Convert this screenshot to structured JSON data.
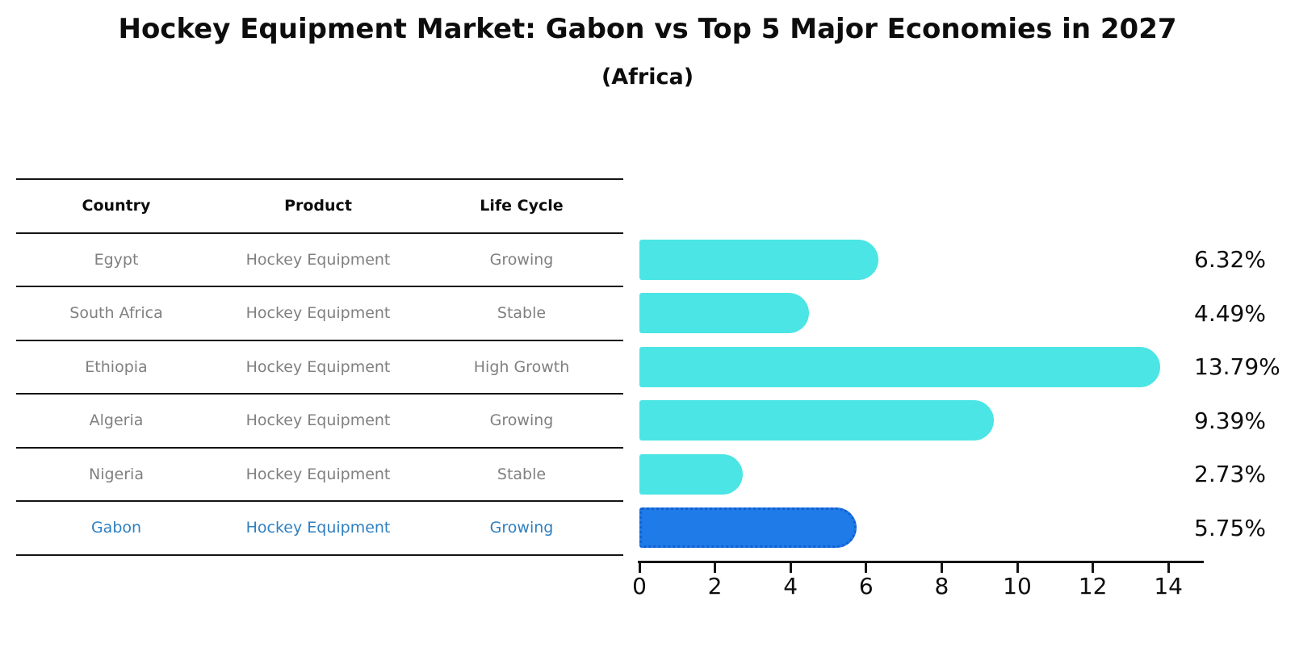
{
  "title": "Hockey Equipment Market: Gabon vs Top 5 Major Economies in 2027",
  "subtitle": "(Africa)",
  "table": {
    "headers": [
      "Country",
      "Product",
      "Life Cycle"
    ],
    "rows": [
      {
        "country": "Egypt",
        "product": "Hockey Equipment",
        "life_cycle": "Growing",
        "highlight": false
      },
      {
        "country": "South Africa",
        "product": "Hockey Equipment",
        "life_cycle": "Stable",
        "highlight": false
      },
      {
        "country": "Ethiopia",
        "product": "Hockey Equipment",
        "life_cycle": "High Growth",
        "highlight": false
      },
      {
        "country": "Algeria",
        "product": "Hockey Equipment",
        "life_cycle": "Growing",
        "highlight": false
      },
      {
        "country": "Nigeria",
        "product": "Hockey Equipment",
        "life_cycle": "Stable",
        "highlight": false
      },
      {
        "country": "Gabon",
        "product": "Hockey Equipment",
        "life_cycle": "Growing",
        "highlight": true
      }
    ]
  },
  "chart_data": {
    "type": "bar",
    "orientation": "horizontal",
    "title": "Hockey Equipment Market: Gabon vs Top 5 Major Economies in 2027",
    "subtitle": "(Africa)",
    "categories": [
      "Egypt",
      "South Africa",
      "Ethiopia",
      "Algeria",
      "Nigeria",
      "Gabon"
    ],
    "values": [
      6.32,
      4.49,
      13.79,
      9.39,
      2.73,
      5.75
    ],
    "value_labels": [
      "6.32%",
      "4.49%",
      "13.79%",
      "9.39%",
      "2.73%",
      "5.75%"
    ],
    "highlighted_category": "Gabon",
    "x_ticks": [
      0,
      2,
      4,
      6,
      8,
      10,
      12,
      14
    ],
    "xlim": [
      0,
      14.45
    ],
    "grid": false,
    "legend": false,
    "xlabel": "",
    "ylabel": ""
  },
  "colors": {
    "bar": "#4AE5E4",
    "highlight_bar": "#1E7BE8",
    "highlight_border": "#1360D2",
    "highlight_text": "#2E7FC1",
    "row_text": "#808080",
    "line": "#141414"
  }
}
